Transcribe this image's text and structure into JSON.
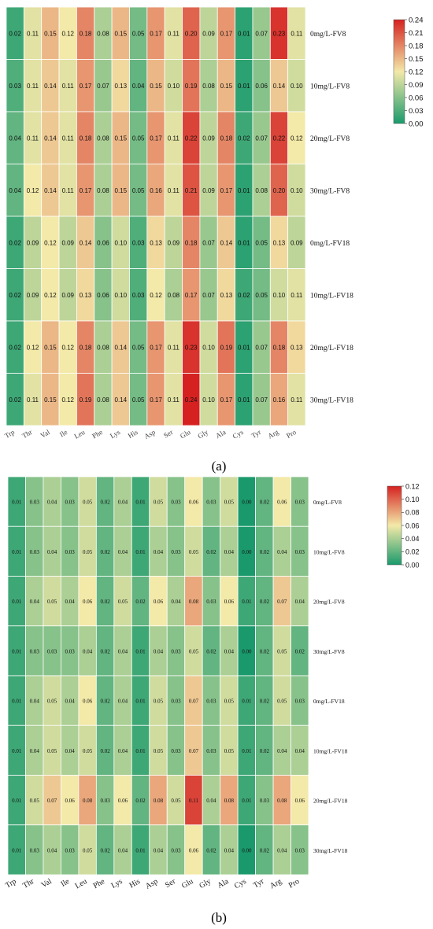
{
  "panel_labels": [
    "(a)",
    "(b)"
  ],
  "chart_data": [
    {
      "type": "heatmap",
      "columns": [
        "Trp",
        "Thr",
        "Val",
        "Ile",
        "Leu",
        "Phe",
        "Lys",
        "His",
        "Asp",
        "Ser",
        "Glu",
        "Gly",
        "Ala",
        "Cys",
        "Tyr",
        "Arg",
        "Pro"
      ],
      "rows": [
        "0mg/L-FV8",
        "10mg/L-FV8",
        "20mg/L-FV8",
        "30mg/L-FV8",
        "0mg/L-FV18",
        "10mg/L-FV18",
        "20mg/L-FV18",
        "30mg/L-FV18"
      ],
      "values": [
        [
          0.02,
          0.11,
          0.15,
          0.12,
          0.18,
          0.08,
          0.15,
          0.05,
          0.17,
          0.11,
          0.2,
          0.09,
          0.17,
          0.01,
          0.07,
          0.23,
          0.11
        ],
        [
          0.03,
          0.11,
          0.14,
          0.11,
          0.17,
          0.07,
          0.13,
          0.04,
          0.15,
          0.1,
          0.19,
          0.08,
          0.15,
          0.01,
          0.06,
          0.14,
          0.1
        ],
        [
          0.04,
          0.11,
          0.14,
          0.11,
          0.18,
          0.08,
          0.15,
          0.05,
          0.17,
          0.11,
          0.22,
          0.09,
          0.18,
          0.02,
          0.07,
          0.22,
          0.12
        ],
        [
          0.04,
          0.12,
          0.14,
          0.11,
          0.17,
          0.08,
          0.15,
          0.05,
          0.16,
          0.11,
          0.21,
          0.09,
          0.17,
          0.01,
          0.08,
          0.2,
          0.1
        ],
        [
          0.02,
          0.09,
          0.12,
          0.09,
          0.14,
          0.06,
          0.1,
          0.03,
          0.13,
          0.09,
          0.18,
          0.07,
          0.14,
          0.01,
          0.05,
          0.13,
          0.09
        ],
        [
          0.02,
          0.09,
          0.12,
          0.09,
          0.13,
          0.06,
          0.1,
          0.03,
          0.12,
          0.08,
          0.17,
          0.07,
          0.13,
          0.02,
          0.05,
          0.1,
          0.11
        ],
        [
          0.02,
          0.12,
          0.15,
          0.12,
          0.18,
          0.08,
          0.14,
          0.05,
          0.17,
          0.11,
          0.23,
          0.1,
          0.19,
          0.01,
          0.07,
          0.18,
          0.13
        ],
        [
          0.02,
          0.11,
          0.15,
          0.12,
          0.19,
          0.08,
          0.14,
          0.05,
          0.17,
          0.11,
          0.24,
          0.1,
          0.17,
          0.01,
          0.07,
          0.16,
          0.11
        ]
      ],
      "colorbar": {
        "min": 0.0,
        "max": 0.24,
        "ticks": [
          "0.24",
          "0.21",
          "0.18",
          "0.15",
          "0.12",
          "0.09",
          "0.06",
          "0.03",
          "0.00"
        ]
      },
      "colors": {
        "low": "#1a9a6c",
        "mid": "#f3e9a8",
        "high": "#d52221"
      }
    },
    {
      "type": "heatmap",
      "columns": [
        "Trp",
        "Thr",
        "Val",
        "Ile",
        "Leu",
        "Phe",
        "Lys",
        "His",
        "Asp",
        "Ser",
        "Glu",
        "Gly",
        "Ala",
        "Cys",
        "Tyr",
        "Arg",
        "Pro"
      ],
      "rows": [
        "0mg/L-FV8",
        "10mg/L-FV8",
        "20mg/L-FV8",
        "30mg/L-FV8",
        "0mg/L-FV18",
        "10mg/L-FV18",
        "20mg/L-FV18",
        "30mg/L-FV18"
      ],
      "values": [
        [
          0.01,
          0.03,
          0.04,
          0.03,
          0.05,
          0.02,
          0.04,
          0.01,
          0.05,
          0.03,
          0.06,
          0.03,
          0.05,
          0.0,
          0.02,
          0.06,
          0.03
        ],
        [
          0.01,
          0.03,
          0.04,
          0.03,
          0.05,
          0.02,
          0.04,
          0.01,
          0.04,
          0.03,
          0.05,
          0.02,
          0.04,
          0.0,
          0.02,
          0.04,
          0.03
        ],
        [
          0.01,
          0.04,
          0.05,
          0.04,
          0.06,
          0.02,
          0.05,
          0.02,
          0.06,
          0.04,
          0.08,
          0.03,
          0.06,
          0.01,
          0.02,
          0.07,
          0.04
        ],
        [
          0.01,
          0.03,
          0.03,
          0.03,
          0.04,
          0.02,
          0.04,
          0.01,
          0.04,
          0.03,
          0.05,
          0.02,
          0.04,
          0.0,
          0.02,
          0.05,
          0.02
        ],
        [
          0.01,
          0.04,
          0.05,
          0.04,
          0.06,
          0.02,
          0.04,
          0.01,
          0.05,
          0.03,
          0.07,
          0.03,
          0.05,
          0.01,
          0.02,
          0.05,
          0.03
        ],
        [
          0.01,
          0.04,
          0.05,
          0.04,
          0.05,
          0.02,
          0.04,
          0.01,
          0.05,
          0.03,
          0.07,
          0.03,
          0.05,
          0.01,
          0.02,
          0.04,
          0.04
        ],
        [
          0.01,
          0.05,
          0.07,
          0.06,
          0.08,
          0.03,
          0.06,
          0.02,
          0.08,
          0.05,
          0.11,
          0.04,
          0.08,
          0.01,
          0.03,
          0.08,
          0.06
        ],
        [
          0.01,
          0.03,
          0.04,
          0.03,
          0.05,
          0.02,
          0.04,
          0.01,
          0.04,
          0.03,
          0.06,
          0.02,
          0.04,
          0.0,
          0.02,
          0.04,
          0.03
        ]
      ],
      "colorbar": {
        "min": 0.0,
        "max": 0.12,
        "ticks": [
          "0.12",
          "0.10",
          "0.08",
          "0.06",
          "0.04",
          "0.02",
          "0.00"
        ]
      },
      "colors": {
        "low": "#1a9a6c",
        "mid": "#f3e9a8",
        "high": "#d52221"
      }
    }
  ]
}
